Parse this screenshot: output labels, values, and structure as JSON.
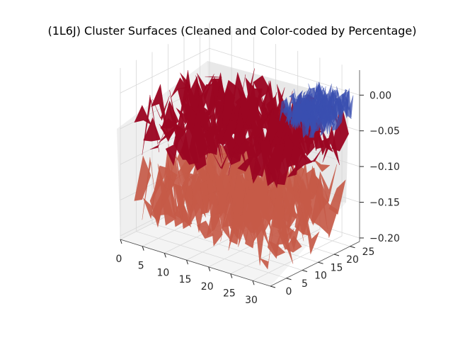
{
  "chart_data": {
    "type": "surface",
    "title": "(1L6J) Cluster Surfaces (Cleaned and Color-coded by Percentage)",
    "xlabel": "",
    "ylabel": "",
    "zlabel": "",
    "x_ticks": [
      "0",
      "5",
      "10",
      "15",
      "20",
      "25",
      "30"
    ],
    "y_ticks": [
      "0",
      "5",
      "10",
      "15",
      "20",
      "25"
    ],
    "z_ticks": [
      "0.00",
      "−0.05",
      "−0.10",
      "−0.15",
      "−0.20"
    ],
    "xlim": [
      0,
      34
    ],
    "ylim": [
      0,
      28
    ],
    "zlim": [
      -0.205,
      0.035
    ],
    "grid": true,
    "colormap": "coolwarm",
    "colors": {
      "upper_surface": "#9b0622",
      "lower_surface": "#c55a48",
      "small_cluster": "#3a4fb0",
      "pane": "#f2f2f2"
    },
    "series": [
      {
        "z_level": -0.045,
        "color": "#9b0622"
      },
      {
        "z_level": -0.14,
        "color": "#c55a48"
      },
      {
        "z_level": -0.01,
        "color": "#3a4fb0"
      }
    ]
  }
}
